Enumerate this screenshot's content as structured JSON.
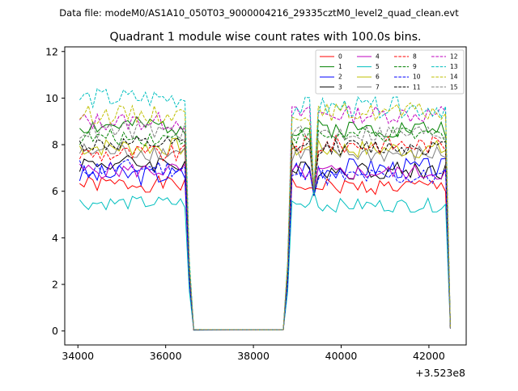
{
  "figure": {
    "suptitle": "Data file: modeM0/AS1A10_050T03_9000004216_29335cztM0_level2_quad_clean.evt"
  },
  "chart_data": {
    "type": "line",
    "title": "Quadrant 1 module wise count rates with 100.0s bins.",
    "xlabel": "",
    "ylabel": "",
    "x_offset_label": "+3.523e8",
    "xlim": [
      33700,
      42850
    ],
    "ylim": [
      -0.6,
      12.2
    ],
    "x_ticks": [
      34000,
      36000,
      38000,
      40000,
      42000
    ],
    "x_tick_labels": [
      "34000",
      "36000",
      "38000",
      "40000",
      "42000"
    ],
    "y_ticks": [
      0,
      2,
      4,
      6,
      8,
      10,
      12
    ],
    "y_tick_labels": [
      "0",
      "2",
      "4",
      "6",
      "8",
      "10",
      "12"
    ],
    "legend_position": "top-right",
    "legend_columns": 4,
    "segments": [
      {
        "start": 34040,
        "end": 36440,
        "step": 100
      },
      {
        "start": 38680,
        "end": 42440,
        "step": 100
      }
    ],
    "drop_points": [
      [
        36540,
        2.5
      ],
      [
        36640,
        0.05
      ]
    ],
    "rise_points": [
      [
        38780,
        2.5
      ]
    ],
    "end_drop_x": 42490,
    "dip_x": 39340,
    "series": [
      {
        "name": "0",
        "color": "#ff0000",
        "dash": "solid",
        "level1": 6.3,
        "level2": 6.2,
        "amp": 0.35,
        "seed": 1
      },
      {
        "name": "1",
        "color": "#008000",
        "dash": "solid",
        "level1": 8.8,
        "level2": 8.7,
        "amp": 0.4,
        "seed": 2
      },
      {
        "name": "2",
        "color": "#0000ff",
        "dash": "solid",
        "level1": 6.7,
        "level2": 7.0,
        "amp": 0.45,
        "seed": 3
      },
      {
        "name": "3",
        "color": "#000000",
        "dash": "solid",
        "level1": 7.2,
        "level2": 6.9,
        "amp": 0.4,
        "seed": 4
      },
      {
        "name": "4",
        "color": "#bf00bf",
        "dash": "solid",
        "level1": 6.9,
        "level2": 6.8,
        "amp": 0.35,
        "seed": 5
      },
      {
        "name": "5",
        "color": "#00bfbf",
        "dash": "solid",
        "level1": 5.5,
        "level2": 5.4,
        "amp": 0.3,
        "seed": 6
      },
      {
        "name": "6",
        "color": "#bfbf00",
        "dash": "solid",
        "level1": 7.9,
        "level2": 7.8,
        "amp": 0.4,
        "seed": 7
      },
      {
        "name": "7",
        "color": "#808080",
        "dash": "solid",
        "level1": 7.7,
        "level2": 7.6,
        "amp": 0.4,
        "seed": 8
      },
      {
        "name": "8",
        "color": "#ff0000",
        "dash": "dashed",
        "level1": 7.6,
        "level2": 8.0,
        "amp": 0.4,
        "seed": 9
      },
      {
        "name": "9",
        "color": "#008000",
        "dash": "dashed",
        "level1": 8.3,
        "level2": 8.4,
        "amp": 0.35,
        "seed": 10
      },
      {
        "name": "10",
        "color": "#0000ff",
        "dash": "dashed",
        "level1": 7.0,
        "level2": 6.6,
        "amp": 0.4,
        "seed": 11
      },
      {
        "name": "11",
        "color": "#000000",
        "dash": "dashed",
        "level1": 8.0,
        "level2": 7.9,
        "amp": 0.35,
        "seed": 12
      },
      {
        "name": "12",
        "color": "#bf00bf",
        "dash": "dashed",
        "level1": 9.0,
        "level2": 9.3,
        "amp": 0.4,
        "seed": 13
      },
      {
        "name": "13",
        "color": "#00bfbf",
        "dash": "dashed",
        "level1": 10.0,
        "level2": 9.6,
        "amp": 0.45,
        "seed": 14
      },
      {
        "name": "14",
        "color": "#bfbf00",
        "dash": "dashed",
        "level1": 9.3,
        "level2": 9.4,
        "amp": 0.4,
        "seed": 15
      },
      {
        "name": "15",
        "color": "#808080",
        "dash": "dashed",
        "level1": 8.6,
        "level2": 8.5,
        "amp": 0.4,
        "seed": 16
      }
    ]
  }
}
